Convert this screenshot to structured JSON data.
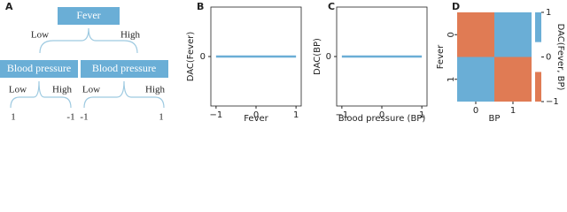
{
  "panel_labels": [
    "A",
    "B",
    "C",
    "D"
  ],
  "diagram": {
    "root": "Fever",
    "root_branches": [
      "Low",
      "High"
    ],
    "children": [
      {
        "label": "Blood pressure",
        "branches": [
          "Low",
          "High"
        ],
        "leaves": [
          "1",
          "-1"
        ]
      },
      {
        "label": "Blood pressure",
        "branches": [
          "Low",
          "High"
        ],
        "leaves": [
          "-1",
          "1"
        ]
      }
    ]
  },
  "chart_data": [
    {
      "type": "line",
      "x_label": "Fever",
      "y_label": "DAC(Fever)",
      "x": [
        -1,
        1
      ],
      "values": [
        0,
        0
      ],
      "color": "#6aaed6",
      "xlim": [
        -1.13,
        1.13
      ],
      "ylim": [
        -1,
        1
      ],
      "xticks": [
        {
          "value": -1,
          "label": "−1"
        },
        0,
        1
      ],
      "yticks": [
        0
      ]
    },
    {
      "type": "line",
      "x_label": "Blood pressure (BP)",
      "y_label": "DAC(BP)",
      "x": [
        -1,
        1
      ],
      "values": [
        0,
        0
      ],
      "color": "#6aaed6",
      "xlim": [
        -1.13,
        1.13
      ],
      "ylim": [
        -1,
        1
      ],
      "xticks": [
        {
          "value": -1,
          "label": "−1"
        },
        0,
        1
      ],
      "yticks": [
        0
      ]
    },
    {
      "type": "heatmap",
      "x_label": "BP",
      "y_label": "Fever",
      "colorbar_label": "DAC(Fever, BP)",
      "x_categories": [
        "0",
        "1"
      ],
      "y_categories": [
        "0",
        "1"
      ],
      "values": [
        [
          -1,
          1
        ],
        [
          1,
          -1
        ]
      ],
      "colormap": [
        "#e07b54",
        "#ffffff",
        "#6aaed6"
      ],
      "zlim": [
        -1,
        1
      ],
      "zticks": [
        {
          "value": -1,
          "label": "−1"
        },
        0,
        1
      ]
    }
  ]
}
